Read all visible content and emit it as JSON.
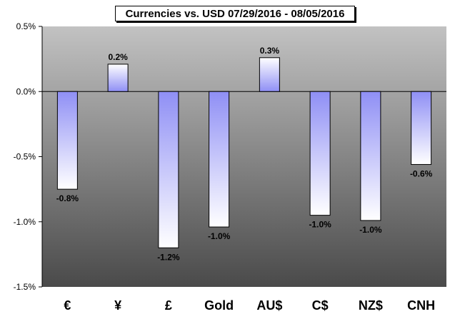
{
  "chart_data": {
    "type": "bar",
    "title": "Currencies vs. USD 07/29/2016 - 08/05/2016",
    "categories": [
      "€",
      "¥",
      "£",
      "Gold",
      "AU$",
      "C$",
      "NZ$",
      "CNH"
    ],
    "values": [
      -0.75,
      0.21,
      -1.2,
      -1.04,
      0.26,
      -0.95,
      -0.99,
      -0.56
    ],
    "data_labels": [
      "-0.8%",
      "0.2%",
      "-1.2%",
      "-1.0%",
      "0.3%",
      "-1.0%",
      "-1.0%",
      "-0.6%"
    ],
    "ylim": [
      -1.5,
      0.5
    ],
    "yticks": [
      0.5,
      0.0,
      -0.5,
      -1.0,
      -1.5
    ],
    "ytick_labels": [
      "0.5%",
      "0.0%",
      "-0.5%",
      "-1.0%",
      "-1.5%"
    ],
    "xlabel": "",
    "ylabel": "",
    "grid": false,
    "legend": "none",
    "colors": {
      "plot_bg_top": "#c2c2c2",
      "plot_bg_bottom": "#4a4a4a",
      "bar_fill_strong": "#8f8ff5",
      "bar_fill_light": "#ffffff",
      "bar_stroke": "#000000"
    }
  }
}
